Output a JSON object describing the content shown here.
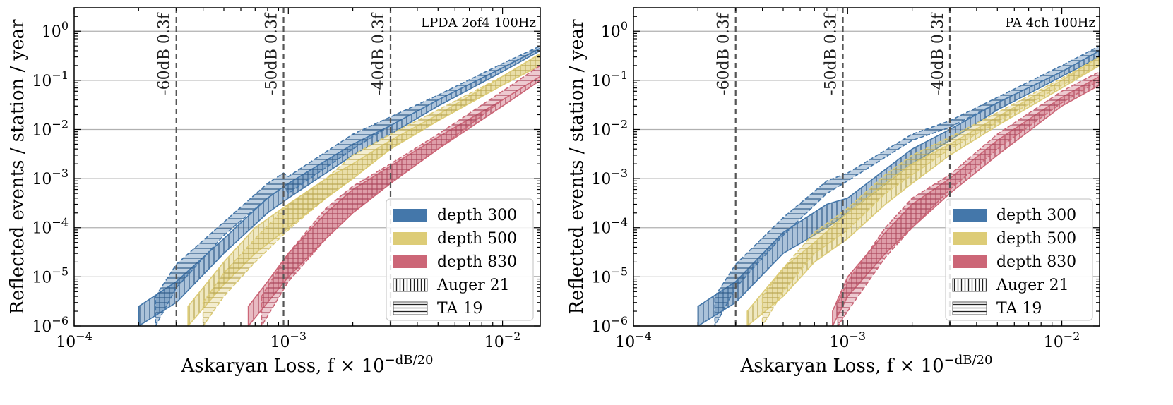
{
  "chart_data": [
    {
      "type": "area",
      "title": "LPDA 2of4 100Hz",
      "xlabel": "Askaryan Loss, f × 10",
      "xlabel_sup": "−dB/20",
      "ylabel": "Reflected events / station / year",
      "x_scale": "log",
      "y_scale": "log",
      "xlim": [
        0.0001,
        0.015
      ],
      "ylim": [
        1e-06,
        3
      ],
      "grid": "horizontal",
      "x_ticks": [
        {
          "value": 0.0001,
          "base": "10",
          "exp": "−4"
        },
        {
          "value": 0.001,
          "base": "10",
          "exp": "−3"
        },
        {
          "value": 0.01,
          "base": "10",
          "exp": "−2"
        }
      ],
      "y_ticks": [
        {
          "value": 1,
          "base": "10",
          "exp": "0"
        },
        {
          "value": 0.1,
          "base": "10",
          "exp": "−1"
        },
        {
          "value": 0.01,
          "base": "10",
          "exp": "−2"
        },
        {
          "value": 0.001,
          "base": "10",
          "exp": "−3"
        },
        {
          "value": 0.0001,
          "base": "10",
          "exp": "−4"
        },
        {
          "value": 1e-05,
          "base": "10",
          "exp": "−5"
        },
        {
          "value": 1e-06,
          "base": "10",
          "exp": "−6"
        }
      ],
      "vlines": [
        {
          "x": 0.0003,
          "label": "-60dB 0.3f"
        },
        {
          "x": 0.00095,
          "label": "-50dB 0.3f"
        },
        {
          "x": 0.003,
          "label": "-40dB 0.3f"
        }
      ],
      "legend_position": "lower-right",
      "legend": [
        {
          "label": "depth 300",
          "kind": "solid",
          "color": "#4477AA"
        },
        {
          "label": "depth 500",
          "kind": "solid",
          "color": "#DDCC77"
        },
        {
          "label": "depth 830",
          "kind": "solid",
          "color": "#CC6677"
        },
        {
          "label": "Auger 21",
          "kind": "vertical-hatch"
        },
        {
          "label": "TA 19",
          "kind": "horizontal-hatch"
        }
      ],
      "series": [
        {
          "depth": "300",
          "model": "Auger 21",
          "color": "#4477AA",
          "x": [
            0.0002,
            0.0003,
            0.0005,
            0.0008,
            0.001,
            0.002,
            0.003,
            0.005,
            0.01,
            0.015
          ],
          "lower": [
            1e-06,
            3e-06,
            3e-05,
            0.0002,
            0.0004,
            0.003,
            0.008,
            0.03,
            0.15,
            0.4
          ],
          "upper": [
            2.5e-06,
            8e-06,
            6e-05,
            0.0004,
            0.0008,
            0.005,
            0.012,
            0.04,
            0.18,
            0.45
          ]
        },
        {
          "depth": "300",
          "model": "TA 19",
          "color": "#4477AA",
          "x": [
            0.00024,
            0.0003,
            0.0005,
            0.0008,
            0.00095,
            0.001,
            0.002,
            0.003,
            0.005,
            0.01,
            0.015
          ],
          "lower": [
            1e-06,
            6e-06,
            7e-05,
            0.0004,
            0.0007,
            0.0005,
            0.004,
            0.012,
            0.04,
            0.18,
            0.45
          ],
          "upper": [
            4e-06,
            1.8e-05,
            0.00013,
            0.0008,
            0.0013,
            0.0011,
            0.008,
            0.018,
            0.05,
            0.22,
            0.5
          ]
        },
        {
          "depth": "500",
          "model": "Auger 21",
          "color": "#DDCC77",
          "x": [
            0.00034,
            0.0005,
            0.0007,
            0.001,
            0.0015,
            0.002,
            0.003,
            0.005,
            0.01,
            0.015
          ],
          "lower": [
            1e-06,
            7e-06,
            3e-05,
            0.0001,
            0.0004,
            0.001,
            0.004,
            0.015,
            0.08,
            0.2
          ],
          "upper": [
            2.5e-06,
            2e-05,
            0.0001,
            0.0003,
            0.001,
            0.002,
            0.006,
            0.02,
            0.12,
            0.35
          ]
        },
        {
          "depth": "500",
          "model": "TA 19",
          "color": "#DDCC77",
          "x": [
            0.0004,
            0.0005,
            0.0007,
            0.001,
            0.0015,
            0.002,
            0.003,
            0.005,
            0.01,
            0.015
          ],
          "lower": [
            1e-06,
            4e-06,
            2e-05,
            9e-05,
            0.0004,
            0.001,
            0.004,
            0.015,
            0.08,
            0.2
          ],
          "upper": [
            3e-06,
            1.2e-05,
            6e-05,
            0.0003,
            0.001,
            0.003,
            0.008,
            0.025,
            0.12,
            0.35
          ]
        },
        {
          "depth": "830",
          "model": "Auger 21",
          "color": "#CC6677",
          "x": [
            0.00065,
            0.0008,
            0.001,
            0.0015,
            0.002,
            0.003,
            0.005,
            0.01,
            0.015
          ],
          "lower": [
            1e-06,
            3e-06,
            1e-05,
            6e-05,
            0.0002,
            0.0008,
            0.004,
            0.03,
            0.1
          ],
          "upper": [
            2.5e-06,
            8e-06,
            3e-05,
            0.0002,
            0.0006,
            0.0018,
            0.007,
            0.04,
            0.12
          ]
        },
        {
          "depth": "830",
          "model": "TA 19",
          "color": "#CC6677",
          "x": [
            0.00075,
            0.001,
            0.0015,
            0.002,
            0.003,
            0.005,
            0.01,
            0.015
          ],
          "lower": [
            1e-06,
            8e-06,
            6e-05,
            0.0002,
            0.0008,
            0.004,
            0.04,
            0.12
          ],
          "upper": [
            4e-06,
            3e-05,
            0.00025,
            0.0007,
            0.002,
            0.008,
            0.06,
            0.2
          ]
        }
      ]
    },
    {
      "type": "area",
      "title": "PA 4ch 100Hz",
      "xlabel": "Askaryan Loss, f × 10",
      "xlabel_sup": "−dB/20",
      "ylabel": "Reflected events / station / year",
      "x_scale": "log",
      "y_scale": "log",
      "xlim": [
        0.0001,
        0.015
      ],
      "ylim": [
        1e-06,
        3
      ],
      "grid": "horizontal",
      "x_ticks": [
        {
          "value": 0.0001,
          "base": "10",
          "exp": "−4"
        },
        {
          "value": 0.001,
          "base": "10",
          "exp": "−3"
        },
        {
          "value": 0.01,
          "base": "10",
          "exp": "−2"
        }
      ],
      "y_ticks": [
        {
          "value": 1,
          "base": "10",
          "exp": "0"
        },
        {
          "value": 0.1,
          "base": "10",
          "exp": "−1"
        },
        {
          "value": 0.01,
          "base": "10",
          "exp": "−2"
        },
        {
          "value": 0.001,
          "base": "10",
          "exp": "−3"
        },
        {
          "value": 0.0001,
          "base": "10",
          "exp": "−4"
        },
        {
          "value": 1e-05,
          "base": "10",
          "exp": "−5"
        },
        {
          "value": 1e-06,
          "base": "10",
          "exp": "−6"
        }
      ],
      "vlines": [
        {
          "x": 0.0003,
          "label": "-60dB 0.3f"
        },
        {
          "x": 0.00095,
          "label": "-50dB 0.3f"
        },
        {
          "x": 0.003,
          "label": "-40dB 0.3f"
        }
      ],
      "legend_position": "lower-right",
      "legend": [
        {
          "label": "depth 300",
          "kind": "solid",
          "color": "#4477AA"
        },
        {
          "label": "depth 500",
          "kind": "solid",
          "color": "#DDCC77"
        },
        {
          "label": "depth 830",
          "kind": "solid",
          "color": "#CC6677"
        },
        {
          "label": "Auger 21",
          "kind": "vertical-hatch"
        },
        {
          "label": "TA 19",
          "kind": "horizontal-hatch"
        }
      ],
      "series": [
        {
          "depth": "300",
          "model": "Auger 21",
          "color": "#4477AA",
          "x": [
            0.0002,
            0.0003,
            0.0005,
            0.0008,
            0.001,
            0.002,
            0.003,
            0.005,
            0.01,
            0.015
          ],
          "lower": [
            1e-06,
            3e-06,
            3e-05,
            0.0001,
            0.0002,
            0.002,
            0.006,
            0.025,
            0.12,
            0.3
          ],
          "upper": [
            2.5e-06,
            8e-06,
            8e-05,
            0.0003,
            0.0004,
            0.004,
            0.01,
            0.035,
            0.15,
            0.4
          ]
        },
        {
          "depth": "300",
          "model": "TA 19",
          "color": "#4477AA",
          "x": [
            0.00024,
            0.0003,
            0.0005,
            0.0008,
            0.001,
            0.002,
            0.003,
            0.005,
            0.01,
            0.015
          ],
          "lower": [
            1e-06,
            6e-06,
            7e-05,
            0.0005,
            0.0009,
            0.006,
            0.011,
            0.035,
            0.15,
            0.4
          ],
          "upper": [
            4e-06,
            1.8e-05,
            0.00016,
            0.0009,
            0.0013,
            0.008,
            0.015,
            0.045,
            0.2,
            0.5
          ]
        },
        {
          "depth": "500",
          "model": "Auger 21",
          "color": "#DDCC77",
          "x": [
            0.00034,
            0.0005,
            0.0007,
            0.001,
            0.0015,
            0.002,
            0.003,
            0.005,
            0.01,
            0.015
          ],
          "lower": [
            1e-06,
            4e-06,
            2e-05,
            6e-05,
            0.0003,
            0.0008,
            0.003,
            0.012,
            0.07,
            0.2
          ],
          "upper": [
            2e-06,
            1.5e-05,
            5e-05,
            0.0002,
            0.0008,
            0.002,
            0.005,
            0.018,
            0.1,
            0.3
          ]
        },
        {
          "depth": "500",
          "model": "TA 19",
          "color": "#DDCC77",
          "x": [
            0.0004,
            0.0005,
            0.0007,
            0.001,
            0.0015,
            0.002,
            0.003,
            0.005,
            0.01,
            0.015
          ],
          "lower": [
            1e-06,
            5e-06,
            3e-05,
            9e-05,
            0.0005,
            0.0012,
            0.004,
            0.014,
            0.08,
            0.2
          ],
          "upper": [
            4e-06,
            1.5e-05,
            8e-05,
            0.00025,
            0.0012,
            0.003,
            0.007,
            0.022,
            0.11,
            0.3
          ]
        },
        {
          "depth": "830",
          "model": "Auger 21",
          "color": "#CC6677",
          "x": [
            0.00085,
            0.001,
            0.0015,
            0.002,
            0.003,
            0.005,
            0.01,
            0.015
          ],
          "lower": [
            1e-06,
            4e-06,
            3e-05,
            0.0001,
            0.0005,
            0.003,
            0.03,
            0.08
          ],
          "upper": [
            2e-06,
            1e-05,
            8e-05,
            0.0003,
            0.001,
            0.006,
            0.045,
            0.12
          ]
        },
        {
          "depth": "830",
          "model": "TA 19",
          "color": "#CC6677",
          "x": [
            0.0009,
            0.001,
            0.0015,
            0.002,
            0.003,
            0.005,
            0.01,
            0.015
          ],
          "lower": [
            1e-06,
            2e-06,
            2.5e-05,
            0.0001,
            0.0006,
            0.004,
            0.035,
            0.1
          ],
          "upper": [
            3e-06,
            8e-06,
            0.0001,
            0.0004,
            0.0012,
            0.008,
            0.06,
            0.15
          ]
        }
      ]
    }
  ]
}
